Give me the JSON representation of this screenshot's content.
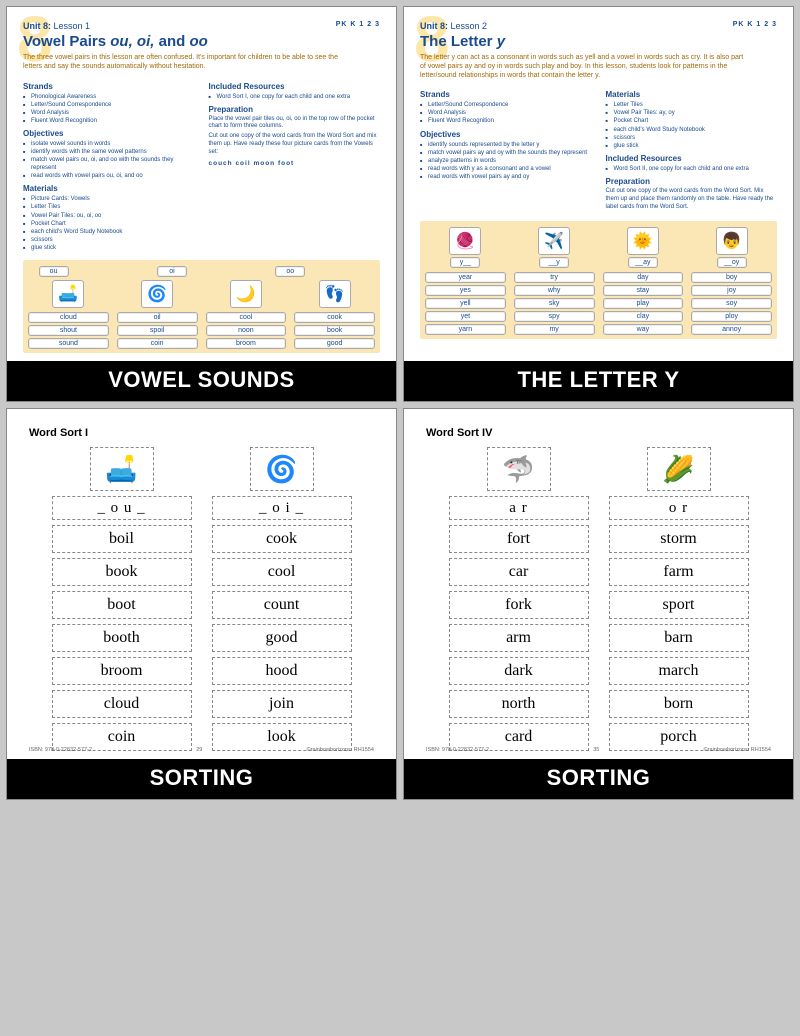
{
  "grades": "PK K 1 2 3",
  "lesson1": {
    "unit": "Unit 8:",
    "lesson": "Lesson 1",
    "bg_number": "8",
    "title_a": "Vowel Pairs ",
    "title_b": "ou, oi,",
    "title_c": " and ",
    "title_d": "oo",
    "intro": "The three vowel pairs in this lesson are often confused. It's important for children to be able to see the letters and say the sounds automatically without hesitation.",
    "h_strands": "Strands",
    "strands": [
      "Phonological Awareness",
      "Letter/Sound Correspondence",
      "Word Analysis",
      "Fluent Word Recognition"
    ],
    "h_obj": "Objectives",
    "obj": [
      "isolate vowel sounds in words",
      "identify words with the same vowel patterns",
      "match vowel pairs ou, oi, and oo with the sounds they represent",
      "read words with vowel pairs ou, oi, and oo"
    ],
    "h_mat": "Materials",
    "mat": [
      "Picture Cards: Vowels",
      "Letter Tiles",
      "Vowel Pair Tiles: ou, oi, oo",
      "Pocket Chart",
      "each child's Word Study Notebook",
      "scissors",
      "glue stick"
    ],
    "h_inc": "Included Resources",
    "inc": [
      "Word Sort I, one copy for each child and one extra"
    ],
    "h_prep": "Preparation",
    "prep1": "Place the vowel pair tiles ou, oi, oo in the top row of the pocket chart to form three columns.",
    "prep2": "Cut out one copy of the word cards from the Word Sort and mix them up. Have ready these four picture cards from the Vowels set:",
    "ready": "couch   coil   moon   foot",
    "chart_hdr": [
      "ou",
      "oi",
      "oo"
    ],
    "chart_icons": [
      "🛋️",
      "🌀",
      "🌙",
      "👣"
    ],
    "chart_cols": [
      [
        "cloud",
        "shout",
        "sound"
      ],
      [
        "oil",
        "spoil",
        "coin"
      ],
      [
        "cool",
        "noon",
        "broom"
      ],
      [
        "cook",
        "book",
        "good"
      ]
    ]
  },
  "lesson2": {
    "unit": "Unit 8:",
    "lesson": "Lesson 2",
    "bg_number": "8",
    "title": "The Letter ",
    "title_em": "y",
    "intro": "The letter y can act as a consonant in words such as yell and a vowel in words such as cry. It is also part of vowel pairs ay and oy in words such play and boy. In this lesson, students look for patterns in the letter/sound relationships in words that contain the letter y.",
    "h_strands": "Strands",
    "strands": [
      "Letter/Sound Correspondence",
      "Word Analysis",
      "Fluent Word Recognition"
    ],
    "h_obj": "Objectives",
    "obj": [
      "identify sounds represented by the letter y",
      "match vowel pairs ay and oy with the sounds they represent",
      "analyze patterns in words",
      "read words with y as a consonant and a vowel",
      "read words with vowel pairs ay and oy"
    ],
    "h_mat": "Materials",
    "mat": [
      "Letter Tiles",
      "Vowel Pair Tiles: ay, oy",
      "Pocket Chart",
      "each child's Word Study Notebook",
      "scissors",
      "glue stick"
    ],
    "h_inc": "Included Resources",
    "inc": [
      "Word Sort II, one copy for each child and one extra"
    ],
    "h_prep": "Preparation",
    "prep1": "Cut out one copy of the word cards from the Word Sort. Mix them up and place them randomly on the table. Have ready the label cards from the Word Sort.",
    "chart_hdr": [
      "y__",
      "__y",
      "__ay",
      "__oy"
    ],
    "chart_icons": [
      "🧶",
      "✈️",
      "🌞",
      "👦"
    ],
    "chart_cols": [
      [
        "year",
        "yes",
        "yell",
        "yet",
        "yarn"
      ],
      [
        "try",
        "why",
        "sky",
        "spy",
        "my"
      ],
      [
        "day",
        "stay",
        "play",
        "clay",
        "way"
      ],
      [
        "boy",
        "joy",
        "soy",
        "ploy",
        "annoy"
      ]
    ]
  },
  "ws1": {
    "title": "Word Sort I",
    "col_head": [
      "_ o u _",
      "_ o i _"
    ],
    "icons": [
      "🛋️",
      "🌀"
    ],
    "cols": [
      [
        "boil",
        "book",
        "boot",
        "booth",
        "broom",
        "cloud",
        "coin"
      ],
      [
        "cook",
        "cool",
        "count",
        "good",
        "hood",
        "join",
        "look"
      ]
    ],
    "isbn": "ISBN: 978-0-22832-577-2",
    "pg": "29"
  },
  "ws4": {
    "title": "Word Sort IV",
    "col_head": [
      "a r",
      "o r"
    ],
    "icons": [
      "🦈",
      "🌽"
    ],
    "cols": [
      [
        "fort",
        "car",
        "fork",
        "arm",
        "dark",
        "north",
        "card"
      ],
      [
        "storm",
        "farm",
        "sport",
        "barn",
        "march",
        "born",
        "porch"
      ]
    ],
    "isbn": "ISBN: 978-0-22832-577-2",
    "pg": "35"
  },
  "labels": {
    "vowel": "VOWEL SOUNDS",
    "lettery": "THE LETTER Y",
    "sort": "SORTING"
  }
}
